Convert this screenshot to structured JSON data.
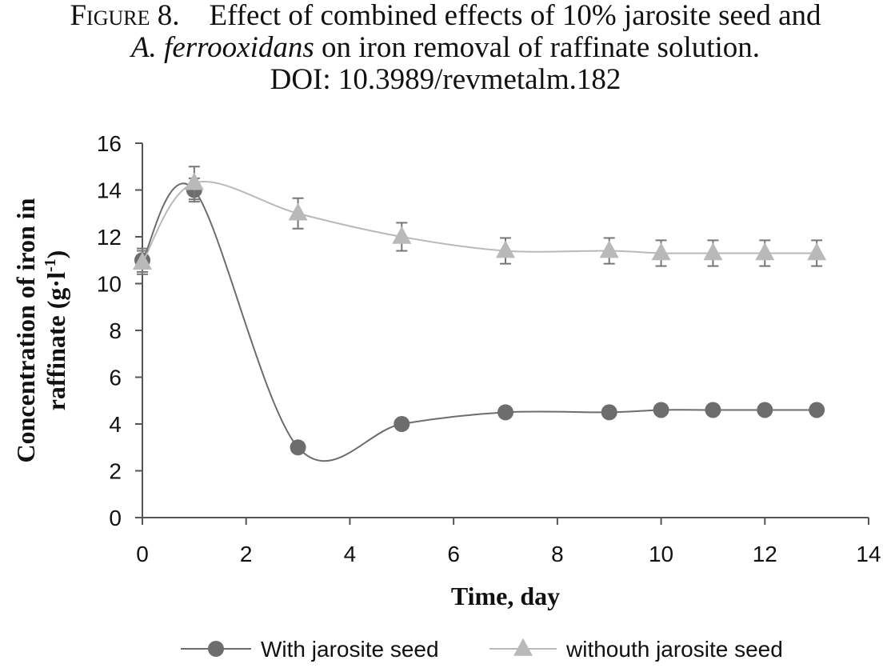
{
  "caption": {
    "label": "Figure 8.",
    "line1_rest": "Effect of combined effects of 10% jarosite seed and",
    "line2_italic": "A. ferrooxidans",
    "line2_rest": "on iron removal of raffinate solution.",
    "line3": "DOI: 10.3989/revmetalm.182"
  },
  "chart_data": {
    "type": "line",
    "title": "",
    "xlabel": "Time, day",
    "ylabel": "Concentration of iron in raffinate (g·l-1)",
    "ylabel_line1": "Concentration of iron in",
    "ylabel_line2_pre": "raffinate (g·l",
    "ylabel_sup": "-1",
    "ylabel_line2_post": ")",
    "xlim": [
      0,
      14
    ],
    "ylim": [
      0,
      16
    ],
    "xticks": [
      0,
      2,
      4,
      6,
      8,
      10,
      12,
      14
    ],
    "yticks": [
      0,
      2,
      4,
      6,
      8,
      10,
      12,
      14,
      16
    ],
    "grid": false,
    "legend_position": "bottom",
    "smooth": true,
    "series": [
      {
        "name": "With jarosite seed",
        "marker": "circle",
        "color": "#6d6d6d",
        "x": [
          0,
          1,
          3,
          5,
          7,
          9,
          10,
          11,
          12,
          13
        ],
        "y": [
          11.0,
          14.0,
          3.0,
          4.0,
          4.5,
          4.5,
          4.6,
          4.6,
          4.6,
          4.6
        ],
        "error": [
          0.5,
          0.5,
          null,
          null,
          null,
          null,
          null,
          null,
          null,
          null
        ]
      },
      {
        "name": "withouth jarosite seed",
        "marker": "triangle",
        "color": "#b9b9b9",
        "x": [
          0,
          1,
          3,
          5,
          7,
          9,
          10,
          11,
          12,
          13
        ],
        "y": [
          10.9,
          14.3,
          13.0,
          12.0,
          11.4,
          11.4,
          11.3,
          11.3,
          11.3,
          11.3
        ],
        "error": [
          0.5,
          0.7,
          0.65,
          0.6,
          0.55,
          0.55,
          0.55,
          0.55,
          0.55,
          0.55
        ]
      }
    ]
  },
  "colors": {
    "axis": "#555555",
    "errorbar": "#777777",
    "text": "#111111"
  }
}
